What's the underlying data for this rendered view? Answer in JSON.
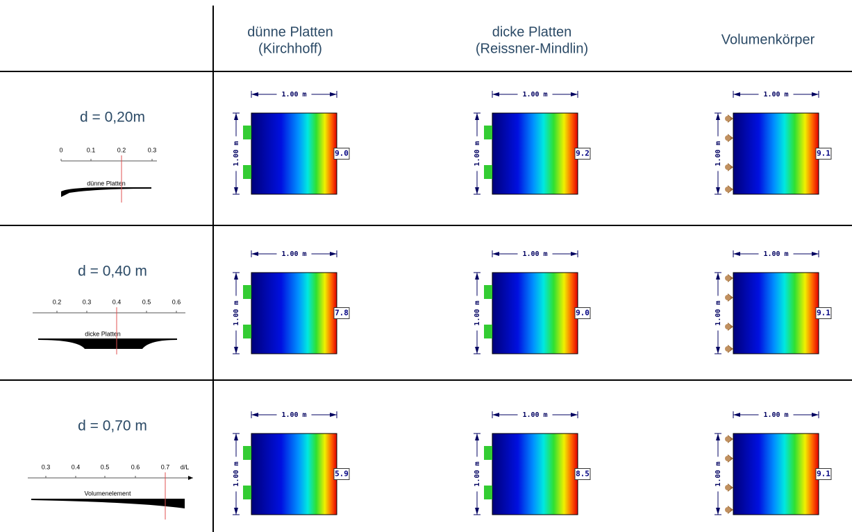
{
  "header": {
    "columns": [
      [
        "dünne Platten",
        "(Kirchhoff)"
      ],
      [
        "dicke Platten",
        "(Reissner-Mindlin)"
      ],
      [
        "Volumenkörper"
      ]
    ]
  },
  "rows": [
    {
      "label": "d = 0,20m",
      "scale": {
        "ticks": [
          "0",
          "0.1",
          "0.2",
          "0.3"
        ],
        "caption": "dünne Platten"
      },
      "cells": [
        {
          "width": "1.00 m",
          "height": "1.00 m",
          "value": "9.0"
        },
        {
          "width": "1.00 m",
          "height": "1.00 m",
          "value": "9.2"
        },
        {
          "width": "1.00 m",
          "height": "1.00 m",
          "value": "9.1"
        }
      ]
    },
    {
      "label": "d = 0,40 m",
      "scale": {
        "ticks": [
          "0.2",
          "0.3",
          "0.4",
          "0.5",
          "0.6"
        ],
        "caption": "dicke Platten"
      },
      "cells": [
        {
          "width": "1.00 m",
          "height": "1.00 m",
          "value": "7.8"
        },
        {
          "width": "1.00 m",
          "height": "1.00 m",
          "value": "9.0"
        },
        {
          "width": "1.00 m",
          "height": "1.00 m",
          "value": "9.1"
        }
      ]
    },
    {
      "label": "d = 0,70 m",
      "scale": {
        "ticks": [
          "0.3",
          "0.4",
          "0.5",
          "0.6",
          "0.7"
        ],
        "axis_label": "d/L",
        "caption": "Volumenelement"
      },
      "cells": [
        {
          "width": "1.00 m",
          "height": "1.00 m",
          "value": "5.9"
        },
        {
          "width": "1.00 m",
          "height": "1.00 m",
          "value": "8.5"
        },
        {
          "width": "1.00 m",
          "height": "1.00 m",
          "value": "9.1"
        }
      ]
    }
  ]
}
